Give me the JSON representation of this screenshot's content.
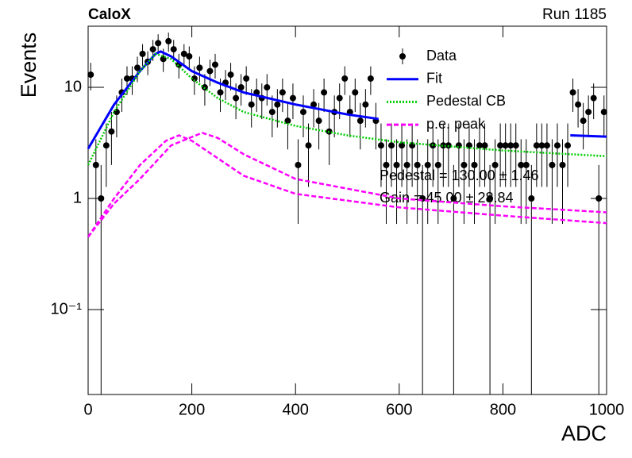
{
  "chart_data": {
    "type": "scatter",
    "title": "CaloX",
    "subtitle": "Run 1185",
    "xlabel": "ADC",
    "ylabel": "Events",
    "log_y": true,
    "xlim": [
      0,
      1000
    ],
    "ylim": [
      0.0172,
      35.5
    ],
    "xticks": [
      0,
      200,
      400,
      600,
      800,
      1000
    ],
    "yticks": [
      {
        "value": 0.1,
        "label": "10⁻¹"
      },
      1,
      10
    ],
    "data": {
      "name": "Data",
      "color": "#000000",
      "x": [
        5,
        15,
        25,
        35,
        45,
        55,
        65,
        75,
        85,
        95,
        105,
        115,
        125,
        135,
        145,
        155,
        165,
        175,
        185,
        195,
        205,
        215,
        225,
        235,
        245,
        255,
        265,
        275,
        285,
        295,
        305,
        315,
        325,
        335,
        345,
        355,
        365,
        375,
        385,
        395,
        405,
        415,
        425,
        435,
        445,
        455,
        465,
        475,
        485,
        495,
        505,
        515,
        525,
        535,
        545,
        555,
        565,
        575,
        585,
        595,
        605,
        615,
        625,
        635,
        645,
        655,
        665,
        675,
        685,
        695,
        705,
        715,
        725,
        735,
        745,
        755,
        765,
        775,
        785,
        795,
        805,
        815,
        825,
        835,
        845,
        855,
        865,
        875,
        885,
        895,
        905,
        915,
        925,
        935,
        945,
        955,
        965,
        975,
        985,
        995
      ],
      "values": [
        13,
        2,
        1,
        3,
        4,
        6,
        9,
        12,
        12,
        15,
        20,
        17,
        22,
        25,
        18,
        26,
        22,
        16,
        20,
        19,
        12,
        15,
        10,
        14,
        16,
        9,
        11,
        13,
        8,
        10,
        12,
        7,
        9,
        8,
        10,
        6,
        7,
        9,
        5,
        8,
        2,
        6,
        3,
        7,
        5,
        9,
        4,
        6,
        8,
        12,
        6,
        9,
        5,
        7,
        12,
        5,
        3,
        2,
        3,
        2,
        3,
        2,
        3,
        2,
        1,
        2,
        3,
        2,
        3,
        3,
        1,
        3,
        2,
        3,
        2,
        3,
        3,
        1,
        2,
        3,
        3,
        3,
        3,
        2,
        2,
        1,
        3,
        3,
        3,
        2,
        3,
        2,
        3,
        9,
        7,
        5,
        6,
        8,
        1,
        6
      ],
      "errors": [
        3.61,
        1.41,
        1,
        1.73,
        2,
        2.45,
        3,
        3.46,
        3.46,
        3.87,
        4.47,
        4.12,
        4.69,
        5,
        4.24,
        5.1,
        4.69,
        4,
        4.47,
        4.36,
        3.46,
        3.87,
        3.16,
        3.74,
        4,
        3,
        3.32,
        3.61,
        2.83,
        3.16,
        3.46,
        2.65,
        3,
        2.83,
        3.16,
        2.45,
        2.65,
        3,
        2.24,
        2.83,
        1.41,
        2.45,
        1.73,
        2.65,
        2.24,
        3,
        2,
        2.45,
        2.83,
        3.46,
        2.45,
        3,
        2.24,
        2.65,
        3.46,
        2.24,
        1.73,
        1.41,
        1.73,
        1.41,
        1.73,
        1.41,
        1.73,
        1.41,
        1,
        1.41,
        1.73,
        1.41,
        1.73,
        1.73,
        1,
        1.73,
        1.41,
        1.73,
        1.41,
        1.73,
        1.73,
        1,
        1.41,
        1.73,
        1.73,
        1.73,
        1.73,
        1.41,
        1.41,
        1,
        1.73,
        1.73,
        1.73,
        1.41,
        1.73,
        1.41,
        1.73,
        3,
        2.65,
        2.24,
        2.45,
        2.83,
        1,
        2.45
      ]
    },
    "series": [
      {
        "name": "Fit",
        "color": "#0000ff",
        "style": "solid",
        "x": [
          0,
          50,
          100,
          130,
          140,
          160,
          200,
          250,
          300,
          400,
          500,
          560,
          745,
          930,
          1000
        ],
        "values": [
          2.8,
          7,
          14,
          20,
          21,
          19,
          14,
          11,
          9,
          7,
          5.7,
          5.2,
          null,
          3.7,
          3.6
        ]
      },
      {
        "name": "Pedestal CB",
        "color": "#00cc00",
        "style": "dotted",
        "x": [
          0,
          50,
          100,
          130,
          160,
          200,
          250,
          300,
          400,
          500,
          600,
          800,
          1000
        ],
        "values": [
          2.0,
          6,
          14,
          20,
          18,
          12,
          8,
          6,
          4.5,
          3.7,
          3.2,
          2.7,
          2.4
        ]
      },
      {
        "name": "p.e. peak",
        "color": "#ff00ff",
        "style": "dashed",
        "curves": [
          {
            "x": [
              0,
              50,
              100,
              150,
              175,
              200,
              250,
              300,
              400,
              600,
              800,
              1000
            ],
            "values": [
              0.45,
              1,
              2,
              3.3,
              3.7,
              3.3,
              2.3,
              1.6,
              1.1,
              0.83,
              0.7,
              0.6
            ]
          },
          {
            "x": [
              0,
              50,
              100,
              160,
              220,
              250,
              300,
              400,
              600,
              800,
              1000
            ],
            "values": [
              0.45,
              0.9,
              1.5,
              3,
              3.9,
              3.5,
              2.5,
              1.5,
              1,
              0.85,
              0.75
            ]
          }
        ]
      }
    ],
    "annotations": [
      "Pedestal = 130.00 ± 1.46",
      "Gain = 45.00 ± 28.84"
    ]
  }
}
